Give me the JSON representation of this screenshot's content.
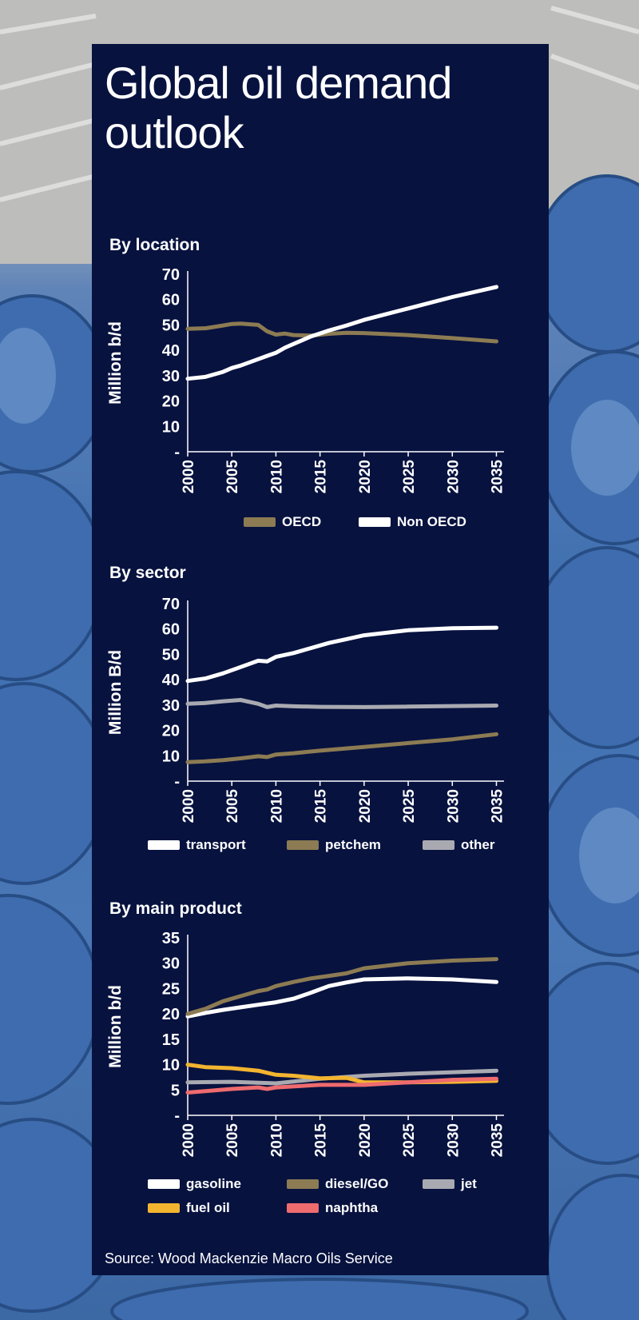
{
  "title": "Global oil demand outlook",
  "source": "Source: Wood Mackenzie Macro Oils Service",
  "colors": {
    "panel": "#07123f",
    "oecd": "#8c7b53",
    "non_oecd": "#ffffff",
    "transport": "#ffffff",
    "petchem": "#8c7b53",
    "other": "#a9aab1",
    "gasoline": "#ffffff",
    "diesel": "#8c7b53",
    "jet": "#a9aab1",
    "fuel_oil": "#f3b530",
    "naphtha": "#ee6b6e"
  },
  "chart_data": [
    {
      "type": "line",
      "title": "By location",
      "ylabel": "Million b/d",
      "ylim": [
        0,
        70
      ],
      "yticks": [
        "-",
        "10",
        "20",
        "30",
        "40",
        "50",
        "60",
        "70"
      ],
      "xticks": [
        "2000",
        "2005",
        "2010",
        "2015",
        "2020",
        "2025",
        "2030",
        "2035"
      ],
      "series": [
        {
          "name": "OECD",
          "color": "#8c7b53",
          "x": [
            2000,
            2002,
            2004,
            2005,
            2006,
            2008,
            2009,
            2010,
            2011,
            2012,
            2014,
            2016,
            2018,
            2020,
            2025,
            2030,
            2035
          ],
          "values": [
            48.5,
            48.7,
            49.8,
            50.4,
            50.5,
            50.0,
            47.5,
            46.2,
            46.6,
            46.0,
            45.8,
            46.5,
            46.9,
            46.8,
            46.0,
            44.8,
            43.5
          ]
        },
        {
          "name": "Non OECD",
          "color": "#ffffff",
          "x": [
            2000,
            2002,
            2004,
            2005,
            2006,
            2008,
            2009,
            2010,
            2011,
            2012,
            2014,
            2016,
            2018,
            2020,
            2025,
            2030,
            2035
          ],
          "values": [
            28.8,
            29.5,
            31.5,
            33.0,
            34.0,
            36.5,
            37.8,
            39.0,
            41.0,
            42.5,
            45.5,
            47.8,
            49.8,
            52.0,
            56.5,
            61.0,
            65.0
          ]
        }
      ]
    },
    {
      "type": "line",
      "title": "By sector",
      "ylabel": "Million B/d",
      "ylim": [
        0,
        70
      ],
      "yticks": [
        "-",
        "10",
        "20",
        "30",
        "40",
        "50",
        "60",
        "70"
      ],
      "xticks": [
        "2000",
        "2005",
        "2010",
        "2015",
        "2020",
        "2025",
        "2030",
        "2035"
      ],
      "series": [
        {
          "name": "transport",
          "color": "#ffffff",
          "x": [
            2000,
            2002,
            2004,
            2006,
            2008,
            2009,
            2010,
            2012,
            2014,
            2016,
            2018,
            2020,
            2025,
            2030,
            2035
          ],
          "values": [
            39.5,
            40.5,
            42.5,
            45.0,
            47.5,
            47.2,
            49.0,
            50.5,
            52.5,
            54.5,
            56.0,
            57.5,
            59.5,
            60.3,
            60.5
          ]
        },
        {
          "name": "petchem",
          "color": "#8c7b53",
          "x": [
            2000,
            2002,
            2004,
            2006,
            2008,
            2009,
            2010,
            2012,
            2015,
            2020,
            2025,
            2030,
            2035
          ],
          "values": [
            7.5,
            7.8,
            8.3,
            9.0,
            9.8,
            9.5,
            10.5,
            11.0,
            12.0,
            13.5,
            15.0,
            16.5,
            18.5
          ]
        },
        {
          "name": "other",
          "color": "#a9aab1",
          "x": [
            2000,
            2002,
            2004,
            2006,
            2008,
            2009,
            2010,
            2012,
            2015,
            2020,
            2025,
            2030,
            2035
          ],
          "values": [
            30.5,
            30.8,
            31.5,
            32.0,
            30.5,
            29.2,
            29.8,
            29.5,
            29.3,
            29.2,
            29.4,
            29.6,
            29.8
          ]
        }
      ]
    },
    {
      "type": "line",
      "title": "By main product",
      "ylabel": "Million b/d",
      "ylim": [
        0,
        35
      ],
      "yticks": [
        "-",
        "5",
        "10",
        "15",
        "20",
        "25",
        "30",
        "35"
      ],
      "xticks": [
        "2000",
        "2005",
        "2010",
        "2015",
        "2020",
        "2025",
        "2030",
        "2035"
      ],
      "series": [
        {
          "name": "gasoline",
          "color": "#ffffff",
          "x": [
            2000,
            2002,
            2004,
            2006,
            2008,
            2010,
            2012,
            2014,
            2016,
            2018,
            2020,
            2025,
            2030,
            2035
          ],
          "values": [
            19.5,
            20.2,
            20.8,
            21.3,
            21.8,
            22.3,
            23.0,
            24.2,
            25.5,
            26.2,
            26.8,
            27.0,
            26.8,
            26.3
          ]
        },
        {
          "name": "diesel/GO",
          "color": "#8c7b53",
          "x": [
            2000,
            2002,
            2004,
            2006,
            2008,
            2009,
            2010,
            2012,
            2014,
            2016,
            2018,
            2020,
            2025,
            2030,
            2035
          ],
          "values": [
            20.0,
            21.0,
            22.5,
            23.5,
            24.5,
            24.8,
            25.5,
            26.3,
            27.0,
            27.5,
            28.0,
            29.0,
            30.0,
            30.5,
            30.8
          ]
        },
        {
          "name": "jet",
          "color": "#a9aab1",
          "x": [
            2000,
            2005,
            2010,
            2015,
            2020,
            2025,
            2030,
            2035
          ],
          "values": [
            6.5,
            6.6,
            6.3,
            7.2,
            7.8,
            8.2,
            8.5,
            8.8
          ]
        },
        {
          "name": "fuel oil",
          "color": "#f3b530",
          "x": [
            2000,
            2002,
            2005,
            2008,
            2010,
            2012,
            2015,
            2018,
            2020,
            2025,
            2030,
            2035
          ],
          "values": [
            10.0,
            9.5,
            9.3,
            8.8,
            8.0,
            7.8,
            7.3,
            7.4,
            6.5,
            6.5,
            6.6,
            6.8
          ]
        },
        {
          "name": "naphtha",
          "color": "#ee6b6e",
          "x": [
            2000,
            2005,
            2008,
            2009,
            2010,
            2015,
            2020,
            2025,
            2030,
            2035
          ],
          "values": [
            4.5,
            5.2,
            5.5,
            5.2,
            5.5,
            6.0,
            6.0,
            6.5,
            7.0,
            7.2
          ]
        }
      ]
    }
  ]
}
